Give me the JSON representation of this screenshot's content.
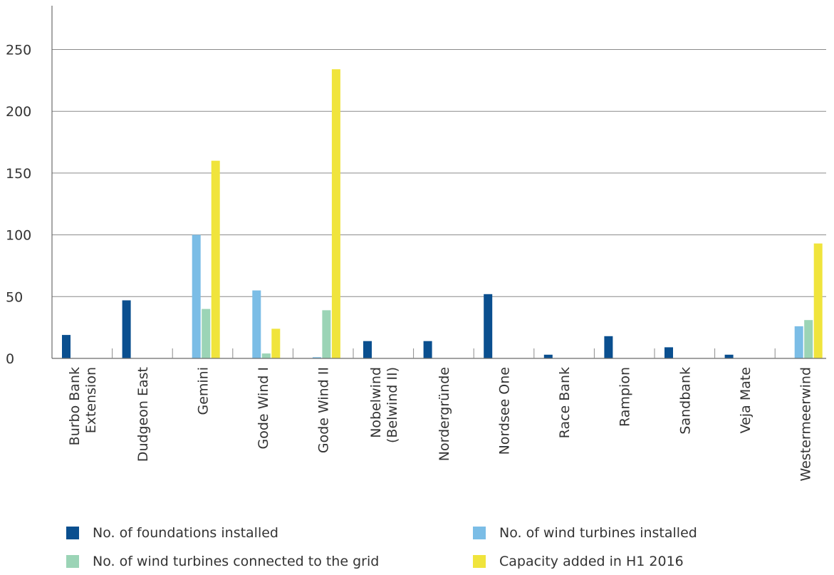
{
  "chart_data": {
    "type": "bar",
    "title": "",
    "xlabel": "",
    "ylabel": "",
    "ylim": [
      0,
      250
    ],
    "yticks": [
      0,
      50,
      100,
      150,
      200,
      250
    ],
    "grid": "horizontal",
    "legend_position": "bottom",
    "categories": [
      "Burbo Bank\nExtension",
      "Dudgeon East",
      "Gemini",
      "Gode Wind I",
      "Gode Wind II",
      "Nobelwind\n(Belwind II)",
      "Nordergründe",
      "Nordsee One",
      "Race Bank",
      "Rampion",
      "Sandbank",
      "Veja Mate",
      "Westermeerwind"
    ],
    "series": [
      {
        "name": "No. of foundations installed",
        "color": "#0a4f8f",
        "values": [
          19,
          47,
          0,
          0,
          0,
          14,
          14,
          52,
          3,
          18,
          9,
          3,
          0
        ]
      },
      {
        "name": "No. of wind turbines installed",
        "color": "#7bbde6",
        "values": [
          0,
          0,
          100,
          55,
          1,
          0,
          0,
          0,
          0,
          0,
          0,
          0,
          26
        ]
      },
      {
        "name": "No. of wind turbines connected to the grid",
        "color": "#9bd4b6",
        "values": [
          0,
          0,
          40,
          4,
          39,
          0,
          0,
          0,
          0,
          0,
          0,
          0,
          31
        ]
      },
      {
        "name": "Capacity added in H1 2016",
        "color": "#f0e43c",
        "values": [
          0,
          0,
          160,
          24,
          234,
          0,
          0,
          0,
          0,
          0,
          0,
          0,
          93
        ]
      }
    ]
  },
  "legend": [
    {
      "label": "No. of foundations installed",
      "color": "#0a4f8f"
    },
    {
      "label": "No. of wind turbines installed",
      "color": "#7bbde6"
    },
    {
      "label": "No. of wind turbines connected to the grid",
      "color": "#9bd4b6"
    },
    {
      "label": "Capacity added in H1 2016",
      "color": "#f0e43c"
    }
  ]
}
